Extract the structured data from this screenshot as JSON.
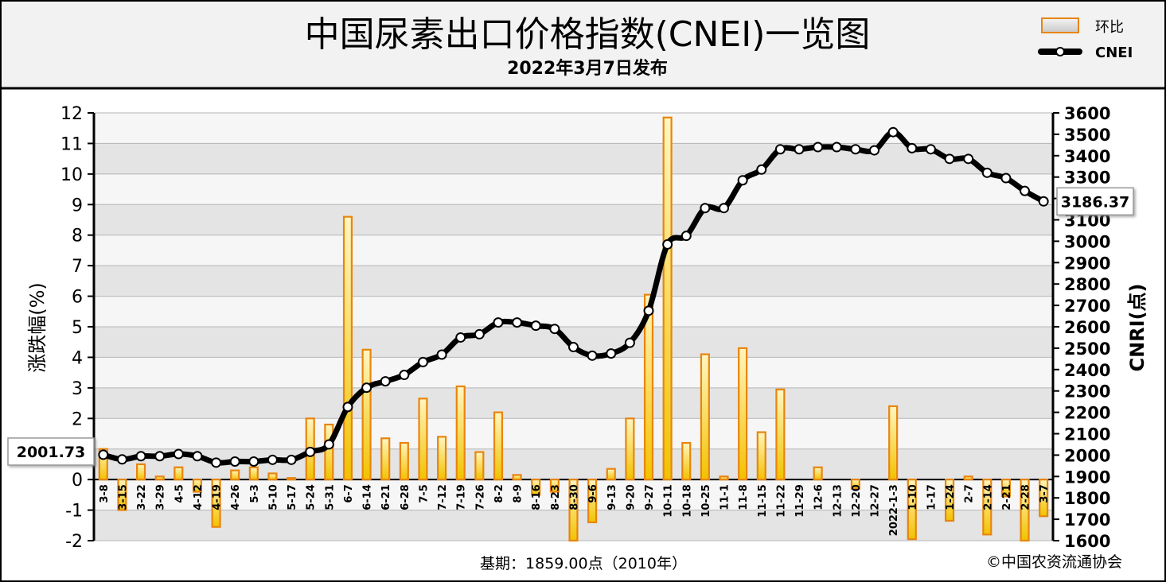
{
  "chart_data": {
    "type": "bar+line",
    "title": "中国尿素出口价格指数(CNEI)一览图",
    "subtitle": "2022年3月7日发布",
    "ylabel_left": "涨跌幅(%)",
    "ylabel_right": "CNRI(点)",
    "ylim_left": [
      -2,
      12
    ],
    "ylim_right": [
      1600,
      3600
    ],
    "yticks_left": [
      "12",
      "11",
      "10",
      "9",
      "8",
      "7",
      "6",
      "5",
      "4",
      "3",
      "2",
      "1",
      "0",
      "-1",
      "-2"
    ],
    "yticks_right": [
      "3600",
      "3500",
      "3400",
      "3300",
      "3200",
      "3100",
      "3000",
      "2900",
      "2800",
      "2700",
      "2600",
      "2500",
      "2400",
      "2300",
      "2200",
      "2100",
      "2000",
      "1900",
      "1800",
      "1700",
      "1600"
    ],
    "grid": true,
    "legend_position": "top-right",
    "legend": {
      "bar": "环比",
      "line": "CNEI"
    },
    "categories": [
      "3-8",
      "3-15",
      "3-22",
      "3-29",
      "4-5",
      "4-12",
      "4-19",
      "4-26",
      "5-3",
      "5-10",
      "5-17",
      "5-24",
      "5-31",
      "6-7",
      "6-14",
      "6-21",
      "6-28",
      "7-5",
      "7-12",
      "7-19",
      "7-26",
      "8-2",
      "8-9",
      "8-16",
      "8-23",
      "8-30",
      "9-6",
      "9-13",
      "9-20",
      "9-27",
      "10-11",
      "10-18",
      "10-25",
      "11-1",
      "11-8",
      "11-15",
      "11-22",
      "11-29",
      "12-6",
      "12-13",
      "12-20",
      "12-27",
      "2022-1-3",
      "1-10",
      "1-17",
      "1-24",
      "2-7",
      "2-14",
      "2-21",
      "2-28",
      "3-7"
    ],
    "series": [
      {
        "name": "环比",
        "kind": "bar",
        "values": [
          1.0,
          -1.0,
          0.5,
          0.1,
          0.4,
          -0.4,
          -1.55,
          0.3,
          0.4,
          0.2,
          0.05,
          2.0,
          1.8,
          8.6,
          4.25,
          1.35,
          1.2,
          2.65,
          1.4,
          3.05,
          0.9,
          2.2,
          0.15,
          -0.5,
          -0.4,
          -2.0,
          -1.4,
          0.35,
          2.0,
          6.05,
          11.85,
          1.2,
          4.1,
          0.1,
          4.3,
          1.55,
          2.95,
          0.0,
          0.4,
          0.0,
          -0.3,
          0.0,
          2.4,
          -1.95,
          0.0,
          -1.35,
          0.1,
          -1.8,
          -0.55,
          -2.0,
          -1.2
        ]
      },
      {
        "name": "CNEI",
        "kind": "line",
        "values": [
          2001.73,
          1980,
          1995,
          1995,
          2005,
          1995,
          1965,
          1970,
          1970,
          1978,
          1978,
          2015,
          2050,
          2225,
          2315,
          2345,
          2375,
          2435,
          2470,
          2550,
          2565,
          2620,
          2620,
          2605,
          2590,
          2505,
          2465,
          2475,
          2525,
          2675,
          2985,
          3025,
          3155,
          3155,
          3285,
          3335,
          3430,
          3430,
          3440,
          3440,
          3430,
          3425,
          3510,
          3435,
          3430,
          3385,
          3385,
          3320,
          3295,
          3235,
          3186.37
        ]
      }
    ],
    "annotations": {
      "first_value": "2001.73",
      "last_value": "3186.37"
    }
  },
  "footer": {
    "base": "基期：1859.00点（2010年）",
    "copyright": "©中国农资流通协会"
  },
  "colors": {
    "bar_border": "#e8850f",
    "bar_fill_top": "#fff0a0",
    "bar_fill_bottom": "#f0b800",
    "line": "#000000",
    "marker_fill": "#ffffff",
    "grid_band": "#e2e2e2",
    "header_bg": "#f2f2f2"
  }
}
